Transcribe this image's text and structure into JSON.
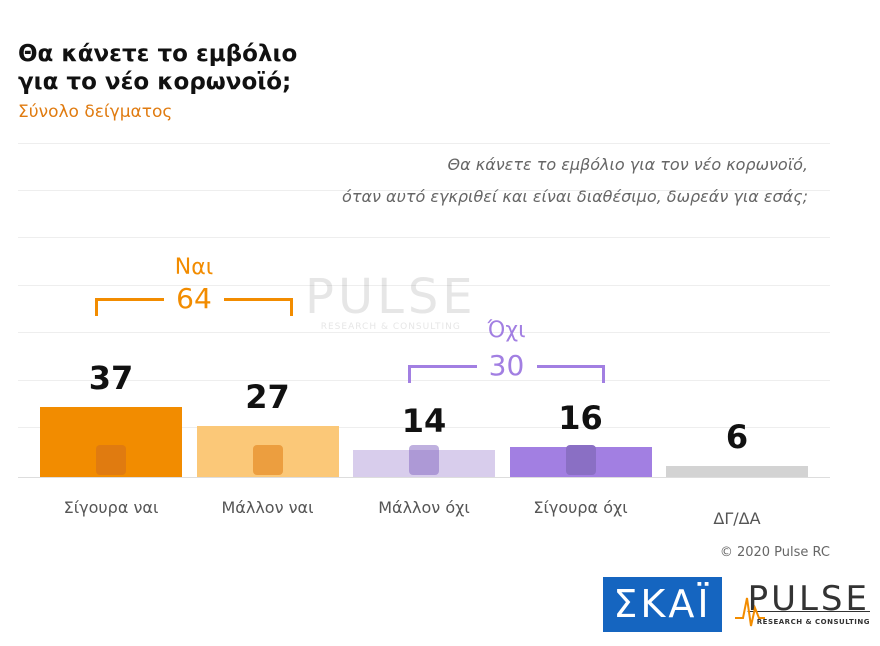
{
  "chart_data": {
    "type": "bar",
    "title": "Θα κάνετε το εμβόλιο για το νέο κορωνοϊό;",
    "subtitle": "Σύνολο δείγματος",
    "question": [
      "Θα κάνετε το εμβόλιο για τον νέο κορωνοϊό,",
      "όταν αυτό εγκριθεί και είναι διαθέσιμο, δωρεάν για εσάς;"
    ],
    "categories": [
      "Σίγουρα ναι",
      "Μάλλον ναι",
      "Μάλλον όχι",
      "Σίγουρα όχι",
      "ΔΓ/ΔΑ"
    ],
    "values": [
      37,
      27,
      14,
      16,
      6
    ],
    "colors": [
      "#f28c00",
      "#fbc878",
      "#d8cdec",
      "#a27fe2",
      "#d3d3d3"
    ],
    "groups": [
      {
        "name": "Ναι",
        "value": 64,
        "color": "#f28c00"
      },
      {
        "name": "Όχι",
        "value": 30,
        "color": "#a27fe2"
      }
    ],
    "copyright": "© 2020 Pulse RC",
    "watermark": {
      "name": "PULSE",
      "tagline": "RESEARCH & CONSULTING"
    },
    "logos": {
      "skai": "ΣΚΑΪ",
      "pulse": "PULSE",
      "pulse_tagline": "RESEARCH & CONSULTING"
    }
  }
}
